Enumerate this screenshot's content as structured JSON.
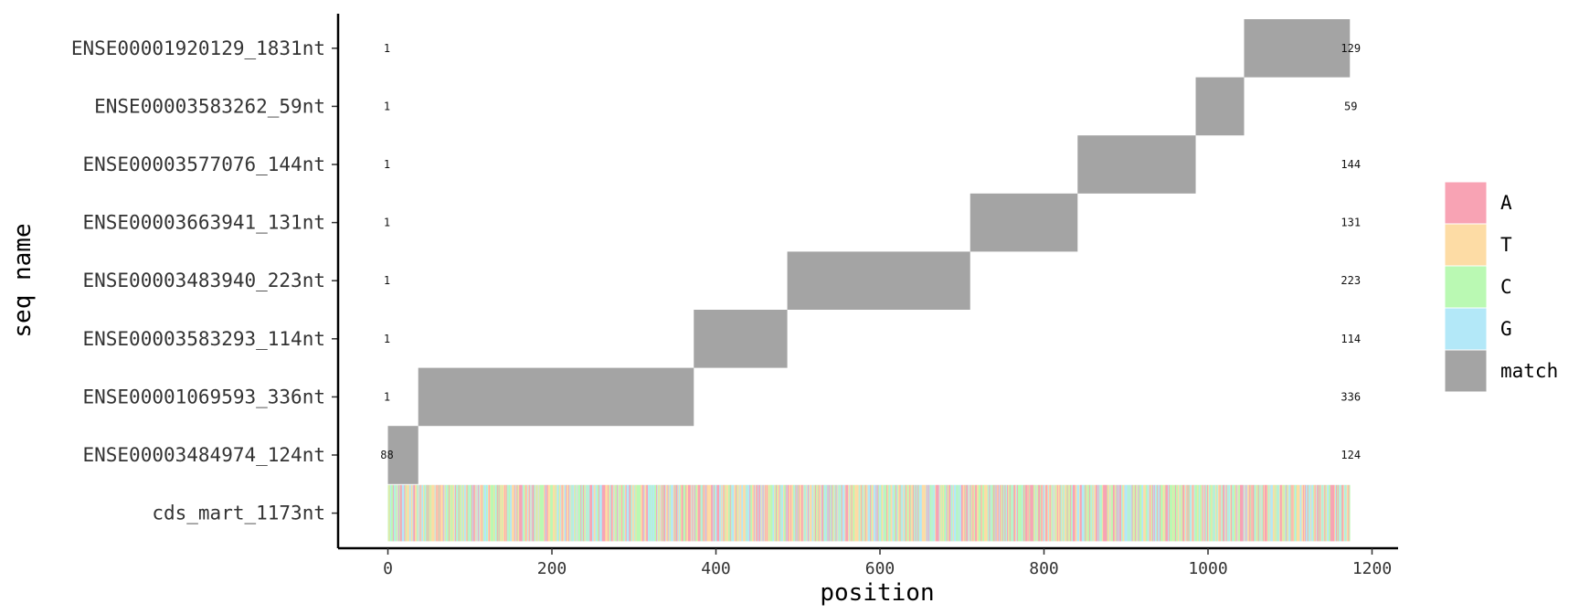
{
  "chart_data": {
    "type": "heatmap",
    "xlabel": "position",
    "ylabel": "seq name",
    "xlim": [
      -60,
      1235
    ],
    "x_ticks": [
      0,
      200,
      400,
      600,
      800,
      1000,
      1200
    ],
    "rows": [
      {
        "name": "ENSE00001920129_1831nt",
        "start_label": "1",
        "end_label": "129",
        "match": [
          1045,
          1173
        ]
      },
      {
        "name": "ENSE00003583262_59nt",
        "start_label": "1",
        "end_label": "59",
        "match": [
          986,
          1044
        ]
      },
      {
        "name": "ENSE00003577076_144nt",
        "start_label": "1",
        "end_label": "144",
        "match": [
          842,
          985
        ]
      },
      {
        "name": "ENSE00003663941_131nt",
        "start_label": "1",
        "end_label": "131",
        "match": [
          711,
          841
        ]
      },
      {
        "name": "ENSE00003483940_223nt",
        "start_label": "1",
        "end_label": "223",
        "match": [
          488,
          710
        ]
      },
      {
        "name": "ENSE00003583293_114nt",
        "start_label": "1",
        "end_label": "114",
        "match": [
          374,
          487
        ]
      },
      {
        "name": "ENSE00001069593_336nt",
        "start_label": "1",
        "end_label": "336",
        "match": [
          38,
          373
        ]
      },
      {
        "name": "ENSE00003484974_124nt",
        "start_label": "88",
        "end_label": "124",
        "match": [
          1,
          37
        ]
      },
      {
        "name": "cds_mart_1173nt",
        "start_label": "",
        "end_label": "",
        "sequence_length": 1173
      }
    ],
    "legend": {
      "placement": "right",
      "entries": [
        {
          "label": "A",
          "color": "#F8A3B4"
        },
        {
          "label": "T",
          "color": "#FDDCA5"
        },
        {
          "label": "C",
          "color": "#BAF9B3"
        },
        {
          "label": "G",
          "color": "#B3E8F8"
        },
        {
          "label": "match",
          "color": "#A4A4A4"
        }
      ]
    },
    "grid": false
  }
}
